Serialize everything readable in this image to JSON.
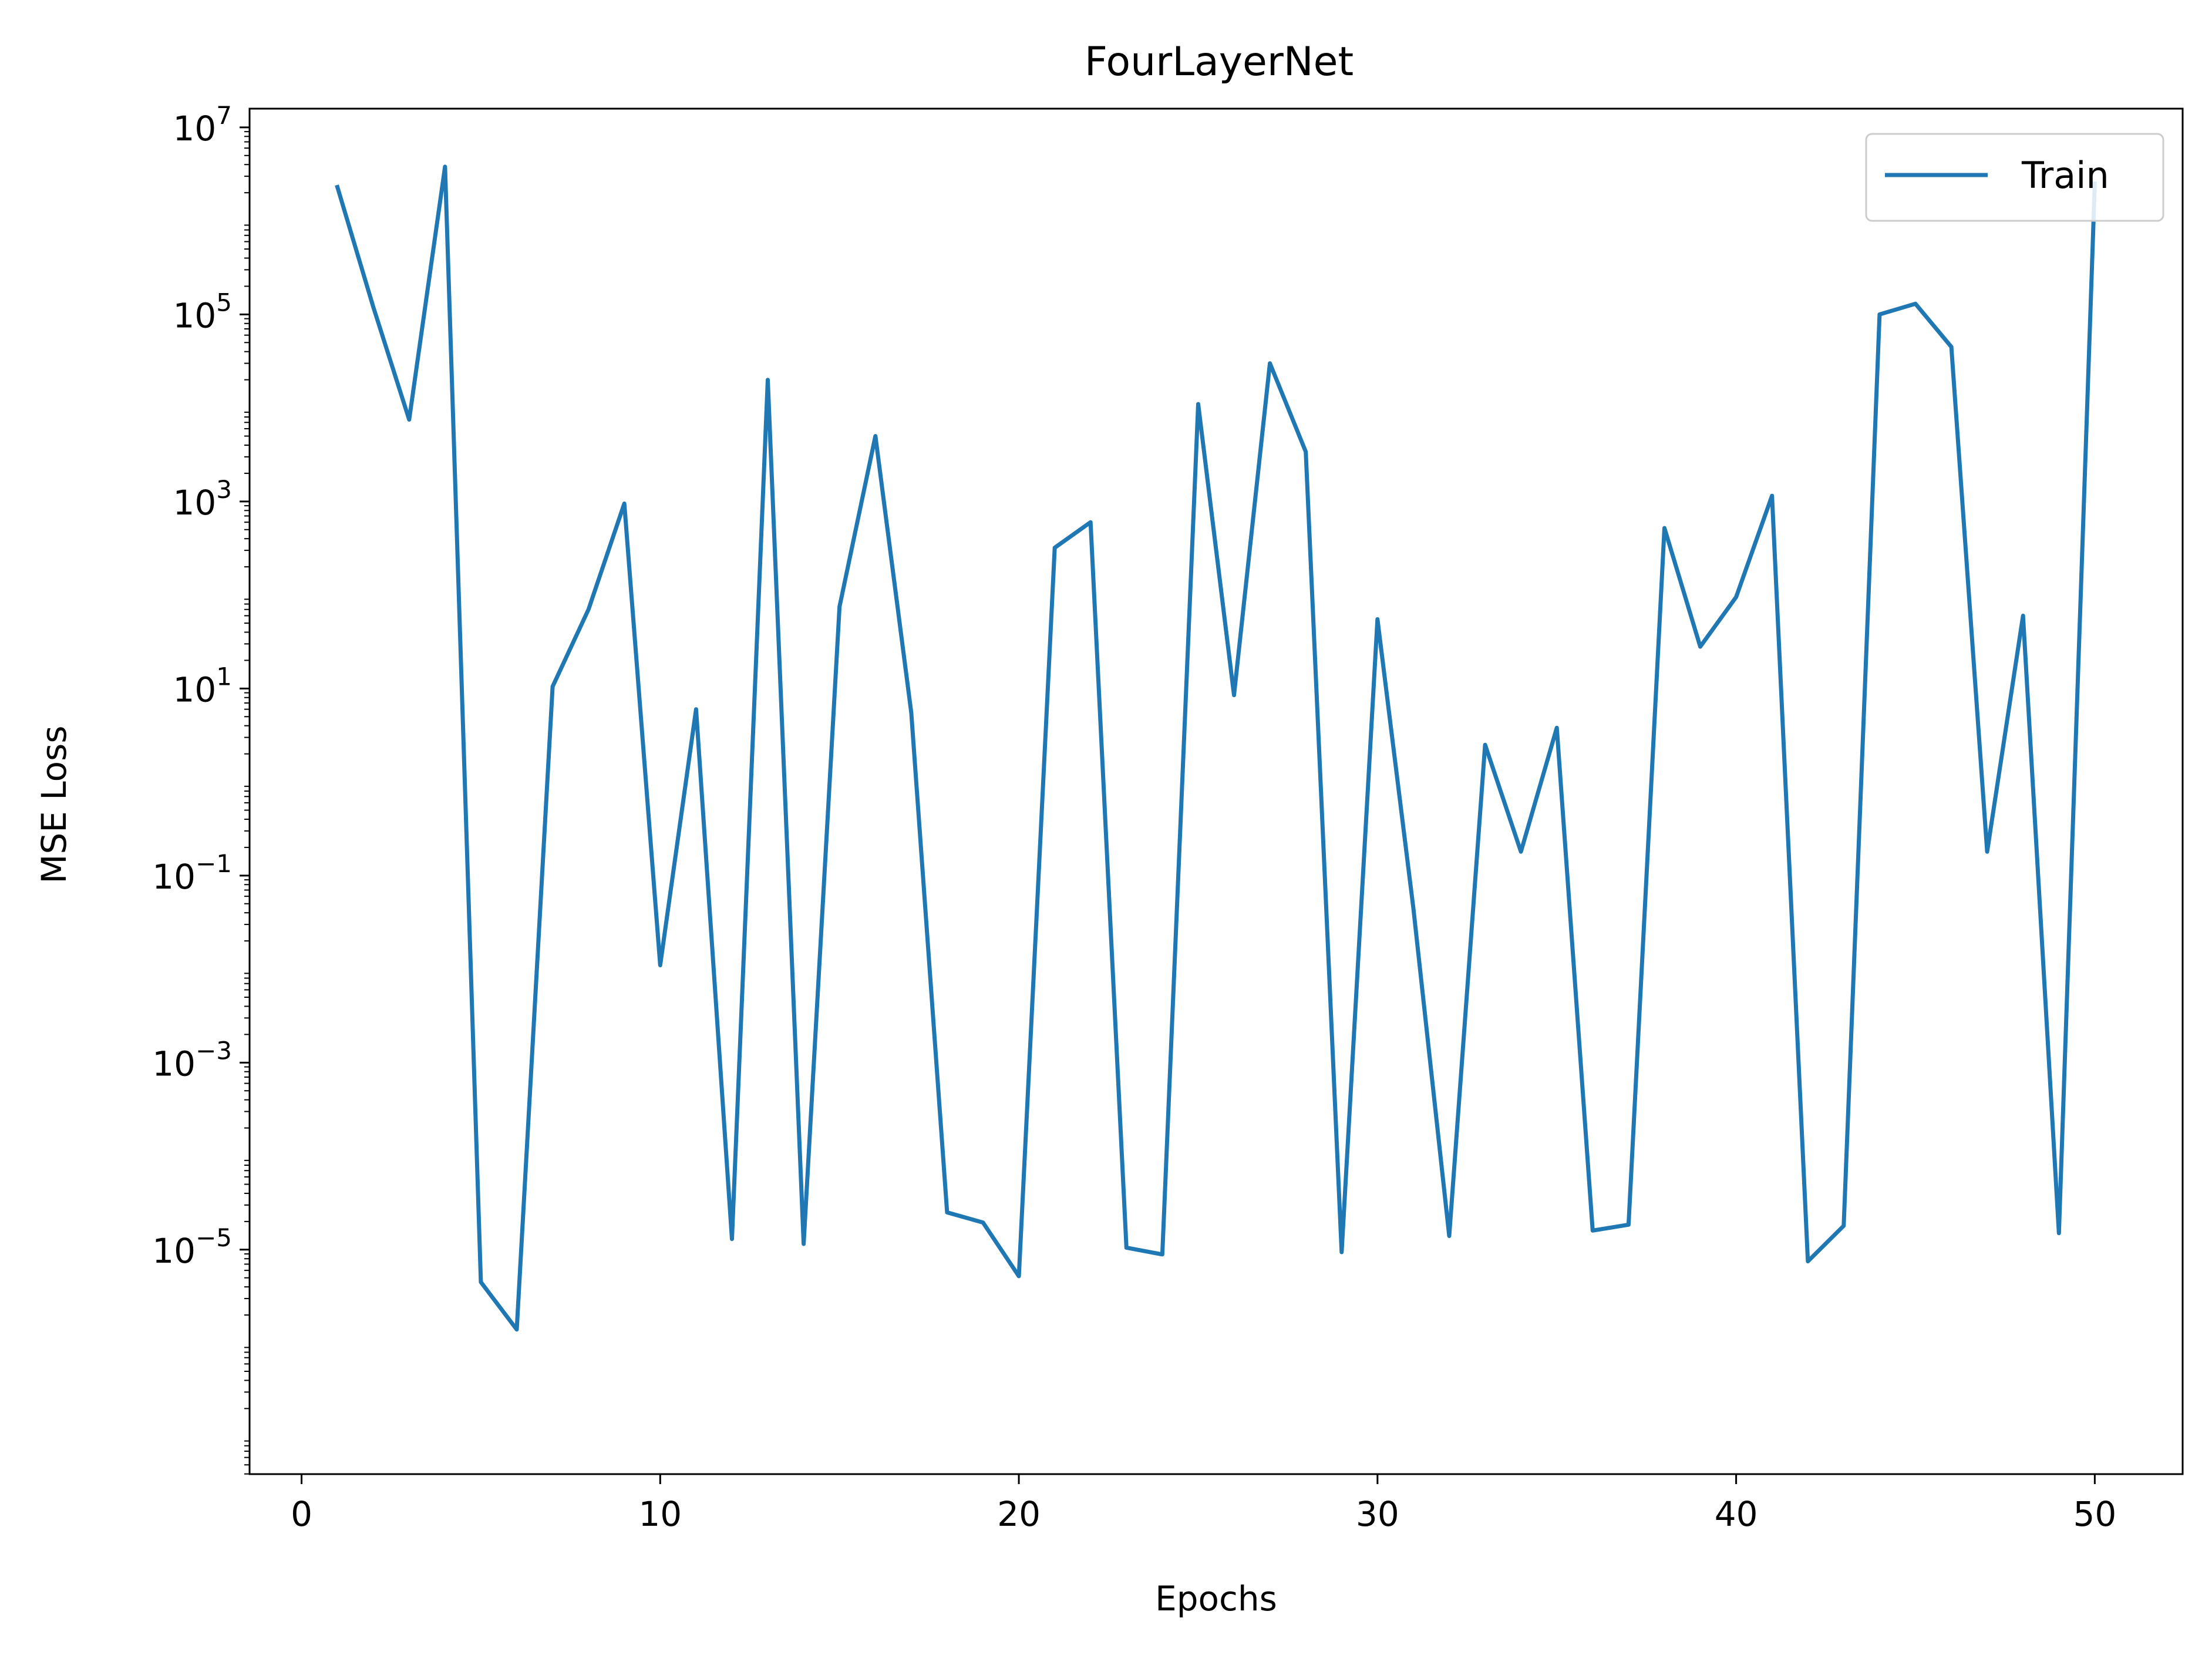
{
  "chart_data": {
    "type": "line",
    "title": "FourLayerNet",
    "xlabel": "Epochs",
    "ylabel": "MSE Loss",
    "yscale": "log",
    "xlim": [
      -1.45,
      52.45
    ],
    "ylim_exp": [
      -7.4,
      7.2
    ],
    "xticks": [
      0,
      10,
      20,
      30,
      40,
      50
    ],
    "yticks": [
      {
        "base": "10",
        "exp": "7",
        "value": 7
      },
      {
        "base": "10",
        "exp": "5",
        "value": 5
      },
      {
        "base": "10",
        "exp": "3",
        "value": 3
      },
      {
        "base": "10",
        "exp": "1",
        "value": 1
      },
      {
        "base": "10",
        "exp": "−1",
        "value": -1
      },
      {
        "base": "10",
        "exp": "−3",
        "value": -3
      },
      {
        "base": "10",
        "exp": "−5",
        "value": -5
      }
    ],
    "grid": false,
    "legend_position": "top-right",
    "series": [
      {
        "name": "Train",
        "color": "#1f77b4",
        "x": [
          1,
          2,
          3,
          4,
          5,
          6,
          7,
          8,
          9,
          10,
          11,
          12,
          13,
          14,
          15,
          16,
          17,
          18,
          19,
          20,
          21,
          22,
          23,
          24,
          25,
          26,
          27,
          28,
          29,
          30,
          31,
          32,
          33,
          34,
          35,
          36,
          37,
          38,
          39,
          40,
          41,
          42,
          43,
          44,
          45,
          46,
          47,
          48,
          49,
          50
        ],
        "y": [
          2300000,
          120000,
          7500,
          3800000,
          4.5e-06,
          1.4e-06,
          10.5,
          70,
          950,
          0.011,
          6,
          1.3e-05,
          20000,
          1.15e-05,
          75,
          5000,
          5.5,
          2.5e-05,
          1.95e-05,
          5.2e-06,
          320,
          600,
          1.05e-05,
          8.9e-06,
          11000,
          8.5,
          30000,
          3400,
          9.4e-06,
          55,
          0.045,
          1.4e-05,
          2.5,
          0.18,
          3.8,
          1.6e-05,
          1.85e-05,
          520,
          28,
          95,
          1150,
          7.5e-06,
          1.8e-05,
          100000,
          130000,
          45000,
          0.18,
          60,
          1.5e-05,
          2500000
        ]
      }
    ]
  }
}
